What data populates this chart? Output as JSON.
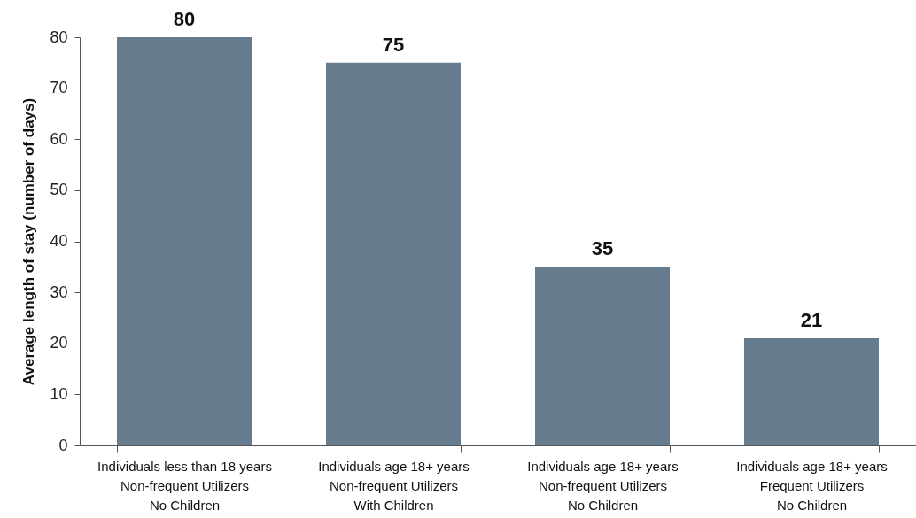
{
  "chart_data": {
    "type": "bar",
    "ylabel": "Average length of stay (number of days)",
    "categories": [
      "Individuals less than 18 years\nNon-frequent Utilizers\nNo Children",
      "Individuals age 18+ years\nNon-frequent Utilizers\nWith Children",
      "Individuals age 18+ years\nNon-frequent Utilizers\nNo Children",
      "Individuals age 18+ years\nFrequent Utilizers\nNo Children"
    ],
    "values": [
      80,
      75,
      35,
      21
    ],
    "color": "#677d8f",
    "ylim": [
      0,
      80
    ],
    "yticks": [
      0,
      10,
      20,
      30,
      40,
      50,
      60,
      70,
      80
    ],
    "data_labels": true,
    "grid": false,
    "legend": false
  }
}
